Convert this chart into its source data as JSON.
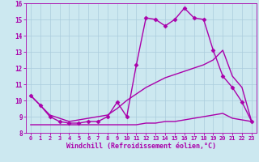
{
  "background_color": "#cce8f0",
  "grid_color": "#aaccdd",
  "line_color": "#aa00aa",
  "marker": "D",
  "markersize": 2.5,
  "linewidth": 1.0,
  "xlabel": "Windchill (Refroidissement éolien,°C)",
  "xlabel_fontsize": 6.0,
  "xlim": [
    -0.5,
    23.5
  ],
  "ylim": [
    8.0,
    16.0
  ],
  "yticks": [
    8,
    9,
    10,
    11,
    12,
    13,
    14,
    15,
    16
  ],
  "xticks": [
    0,
    1,
    2,
    3,
    4,
    5,
    6,
    7,
    8,
    9,
    10,
    11,
    12,
    13,
    14,
    15,
    16,
    17,
    18,
    19,
    20,
    21,
    22,
    23
  ],
  "line1_x": [
    0,
    1,
    2,
    3,
    4,
    5,
    6,
    7,
    8,
    9,
    10,
    11,
    12,
    13,
    14,
    15,
    16,
    17,
    18,
    19,
    20,
    21,
    22,
    23
  ],
  "line1_y": [
    10.3,
    9.7,
    9.0,
    8.7,
    8.6,
    8.6,
    8.7,
    8.7,
    9.0,
    9.9,
    9.0,
    12.2,
    15.1,
    15.0,
    14.6,
    15.0,
    15.7,
    15.1,
    15.0,
    13.1,
    11.5,
    10.8,
    9.9,
    8.7
  ],
  "line2_x": [
    0,
    1,
    2,
    3,
    4,
    5,
    6,
    7,
    8,
    9,
    10,
    11,
    12,
    13,
    14,
    15,
    16,
    17,
    18,
    19,
    20,
    21,
    22,
    23
  ],
  "line2_y": [
    10.3,
    9.7,
    9.1,
    8.9,
    8.7,
    8.8,
    8.9,
    9.0,
    9.1,
    9.5,
    10.0,
    10.4,
    10.8,
    11.1,
    11.4,
    11.6,
    11.8,
    12.0,
    12.2,
    12.5,
    13.1,
    11.5,
    10.8,
    8.7
  ],
  "line3_x": [
    0,
    1,
    2,
    3,
    4,
    5,
    6,
    7,
    8,
    9,
    10,
    11,
    12,
    13,
    14,
    15,
    16,
    17,
    18,
    19,
    20,
    21,
    22,
    23
  ],
  "line3_y": [
    8.5,
    8.5,
    8.5,
    8.5,
    8.5,
    8.5,
    8.5,
    8.5,
    8.5,
    8.5,
    8.5,
    8.5,
    8.6,
    8.6,
    8.7,
    8.7,
    8.8,
    8.9,
    9.0,
    9.1,
    9.2,
    8.9,
    8.8,
    8.7
  ]
}
